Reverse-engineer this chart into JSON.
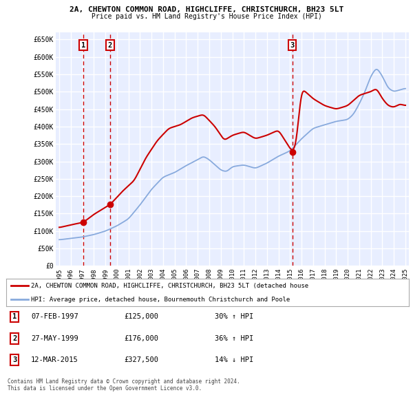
{
  "title1": "2A, CHEWTON COMMON ROAD, HIGHCLIFFE, CHRISTCHURCH, BH23 5LT",
  "title2": "Price paid vs. HM Land Registry's House Price Index (HPI)",
  "ylim": [
    0,
    670000
  ],
  "yticks": [
    0,
    50000,
    100000,
    150000,
    200000,
    250000,
    300000,
    350000,
    400000,
    450000,
    500000,
    550000,
    600000,
    650000
  ],
  "ytick_labels": [
    "£0",
    "£50K",
    "£100K",
    "£150K",
    "£200K",
    "£250K",
    "£300K",
    "£350K",
    "£400K",
    "£450K",
    "£500K",
    "£550K",
    "£600K",
    "£650K"
  ],
  "bg_color": "#e8eeff",
  "grid_color": "#ffffff",
  "sale_dates": [
    1997.09,
    1999.41,
    2015.19
  ],
  "sale_prices": [
    125000,
    176000,
    327500
  ],
  "sale_labels": [
    "1",
    "2",
    "3"
  ],
  "legend_line1": "2A, CHEWTON COMMON ROAD, HIGHCLIFFE, CHRISTCHURCH, BH23 5LT (detached house",
  "legend_line2": "HPI: Average price, detached house, Bournemouth Christchurch and Poole",
  "table_entries": [
    [
      "1",
      "07-FEB-1997",
      "£125,000",
      "30% ↑ HPI"
    ],
    [
      "2",
      "27-MAY-1999",
      "£176,000",
      "36% ↑ HPI"
    ],
    [
      "3",
      "12-MAR-2015",
      "£327,500",
      "14% ↓ HPI"
    ]
  ],
  "footer": "Contains HM Land Registry data © Crown copyright and database right 2024.\nThis data is licensed under the Open Government Licence v3.0.",
  "red_color": "#cc0000",
  "blue_color": "#88aadd"
}
